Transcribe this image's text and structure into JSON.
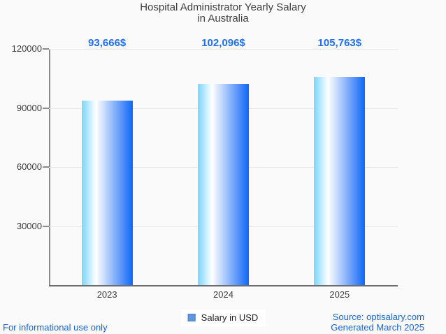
{
  "chart_data": {
    "type": "bar",
    "title": "Hospital Administrator Yearly Salary in Australia",
    "title_lines": [
      "Hospital Administrator Yearly Salary",
      "in Australia"
    ],
    "categories": [
      "2023",
      "2024",
      "2025"
    ],
    "values": [
      93666,
      102096,
      105763
    ],
    "value_labels": [
      "93,666$",
      "102,096$",
      "105,763$"
    ],
    "series": [
      {
        "name": "Salary in USD",
        "values": [
          93666,
          102096,
          105763
        ]
      }
    ],
    "xlabel": "",
    "ylabel": "",
    "ylim": [
      0,
      120000
    ],
    "yticks": [
      30000,
      60000,
      90000,
      120000
    ],
    "ytick_labels": [
      "30000",
      "60000",
      "90000",
      "120000"
    ],
    "grid": true,
    "legend_position": "bottom"
  },
  "legend": {
    "label": "Salary in USD"
  },
  "footer": {
    "left": "For informational use only",
    "source_line1": "Source: optisalary.com",
    "source_line2": "Generated March 2025"
  },
  "theme": {
    "background": "#fafafa",
    "grid": "#e7e7e7",
    "axis": "#8b8b8b",
    "baseline": "#6d6d6d",
    "bar_gradient": [
      "#7dd5fc",
      "#ffffff",
      "#0f66f7"
    ],
    "value_label_color": "#1f6ff2",
    "footer_link_color": "#1a63d8",
    "legend_swatch": "#5e97e0",
    "legend_swatch_border": "#4d7fc0",
    "title_color": "#3f3f3f"
  }
}
